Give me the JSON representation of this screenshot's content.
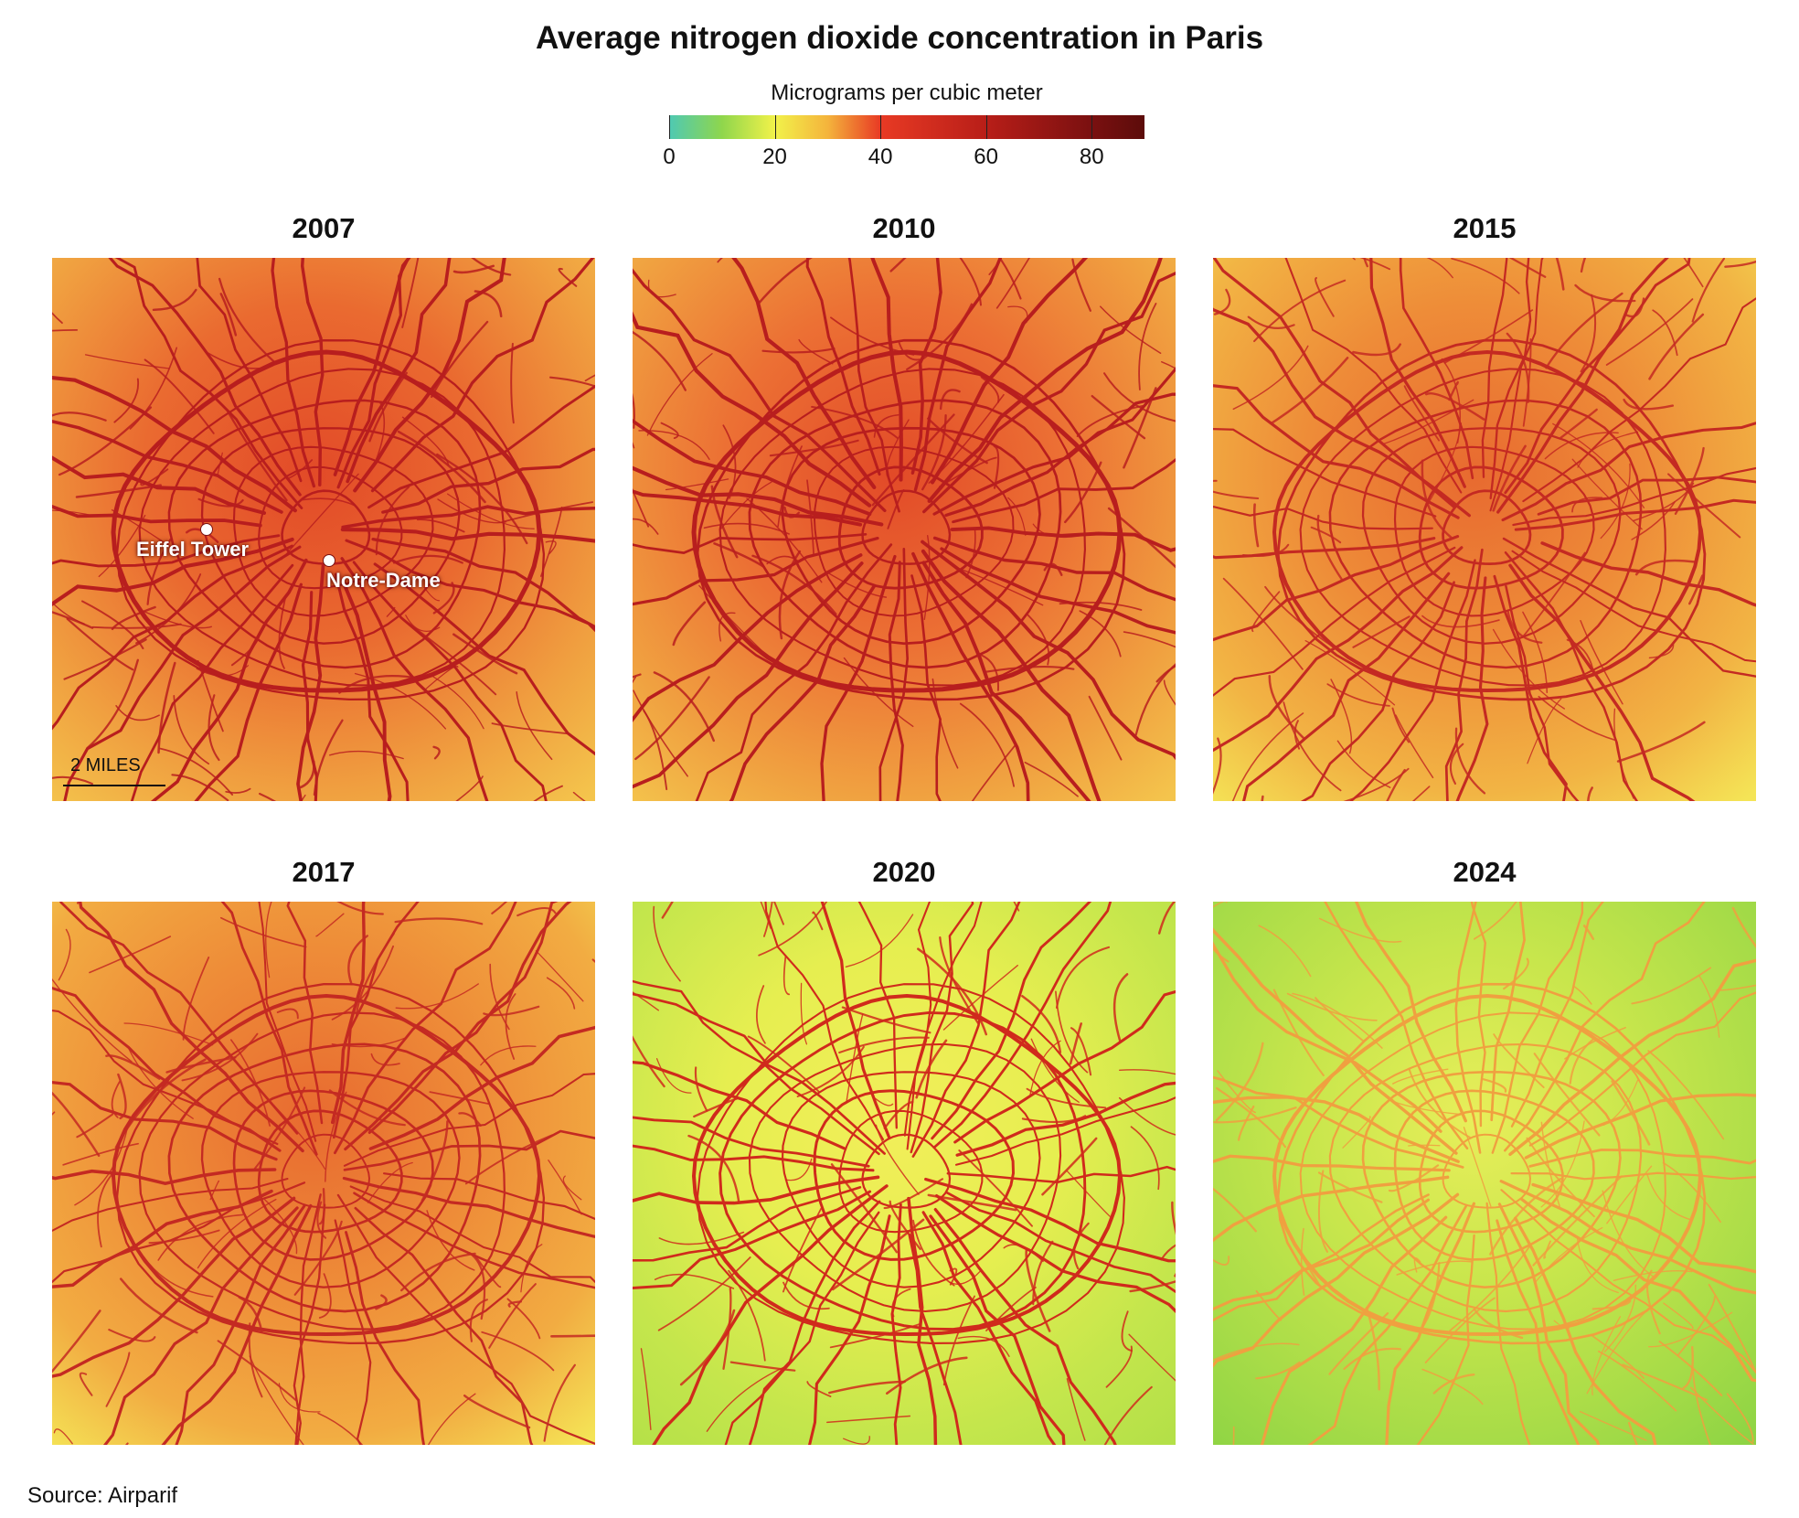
{
  "title": "Average nitrogen dioxide concentration in Paris",
  "legend": {
    "title": "Micrograms per cubic meter",
    "min": 0,
    "max": 90,
    "ticks": [
      "0",
      "20",
      "40",
      "60",
      "80"
    ],
    "tick_values": [
      0,
      20,
      40,
      60,
      80
    ],
    "color_stops": [
      {
        "value": 0,
        "color": "#4fc9b3"
      },
      {
        "value": 10,
        "color": "#8fd64c"
      },
      {
        "value": 20,
        "color": "#f2f24a"
      },
      {
        "value": 30,
        "color": "#f4b43c"
      },
      {
        "value": 40,
        "color": "#e83a24"
      },
      {
        "value": 60,
        "color": "#b81e18"
      },
      {
        "value": 80,
        "color": "#7a1010"
      },
      {
        "value": 90,
        "color": "#5c0c0a"
      }
    ]
  },
  "panels": [
    {
      "year": "2007",
      "background": {
        "center": "#e24a28",
        "mid": "#ea6a30",
        "edge": "#f0a040",
        "corner": "#f4c44c"
      },
      "roads": "#b81e1e"
    },
    {
      "year": "2010",
      "background": {
        "center": "#e24a28",
        "mid": "#ec7034",
        "edge": "#f0a040",
        "corner": "#f4c44c"
      },
      "roads": "#b81e1e"
    },
    {
      "year": "2015",
      "background": {
        "center": "#e86a30",
        "mid": "#ee8c38",
        "edge": "#f2b444",
        "corner": "#f4e456"
      },
      "roads": "#c42a22"
    },
    {
      "year": "2017",
      "background": {
        "center": "#e86a30",
        "mid": "#ee8c38",
        "edge": "#f2ac42",
        "corner": "#f4e456"
      },
      "roads": "#c42a22"
    },
    {
      "year": "2020",
      "background": {
        "center": "#f2ee5a",
        "mid": "#e6ee50",
        "edge": "#c4e64c",
        "corner": "#b4e048"
      },
      "roads": "#d02a1c"
    },
    {
      "year": "2024",
      "background": {
        "center": "#e8ee5a",
        "mid": "#c8e64c",
        "edge": "#a8dc48",
        "corner": "#8ed444"
      },
      "roads": "#f0a040"
    }
  ],
  "landmarks": [
    {
      "name": "Eiffel Tower"
    },
    {
      "name": "Notre-Dame"
    }
  ],
  "scale_label": "2 MILES",
  "source": "Source: Airparif"
}
